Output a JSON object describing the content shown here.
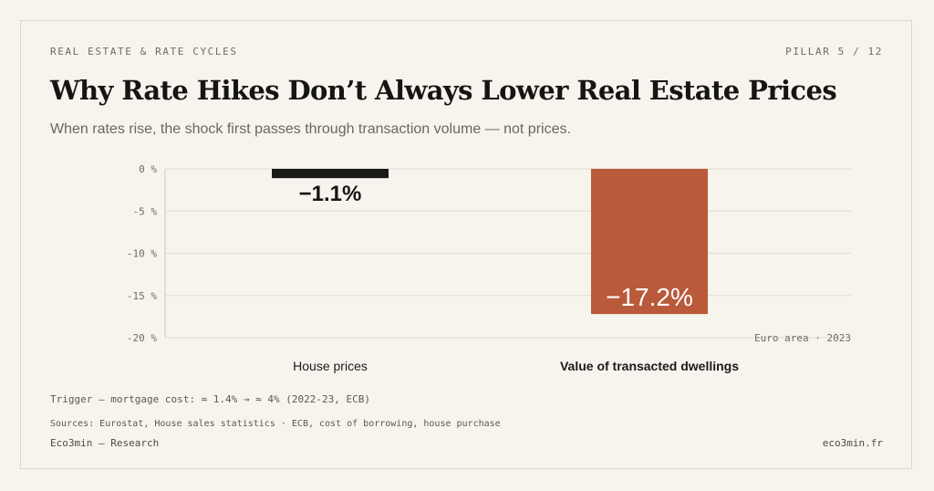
{
  "header": {
    "kicker": "REAL ESTATE & RATE CYCLES",
    "pillar": "PILLAR 5 / 12",
    "title": "Why Rate Hikes Don’t Always Lower Real Estate Prices",
    "subtitle": "When rates rise, the shock first passes through transaction volume — not prices."
  },
  "chart_data": {
    "type": "bar",
    "categories": [
      "House prices",
      "Value of transacted dwellings"
    ],
    "values": [
      -1.1,
      -17.2
    ],
    "value_labels": [
      "−1.1%",
      "−17.2%"
    ],
    "ylim": [
      -20,
      0
    ],
    "yticks": [
      0,
      -5,
      -10,
      -15,
      -20
    ],
    "ytick_labels": [
      "0 %",
      "-5 %",
      "-10 %",
      "-15 %",
      "-20 %"
    ],
    "annotation": "Euro area · 2023",
    "grid": true,
    "colors": [
      "#1a1a18",
      "#b95a3a"
    ],
    "label_colors": [
      "#161513",
      "#ffffff"
    ],
    "gridline_color": "#e3ddd2"
  },
  "footer": {
    "trigger": "Trigger — mortgage cost: ≈ 1.4% → ≈ 4% (2022-23, ECB)",
    "sources": "Sources: Eurostat, House sales statistics · ECB, cost of borrowing, house purchase",
    "brand": "Eco3min — Research",
    "site": "eco3min.fr"
  }
}
